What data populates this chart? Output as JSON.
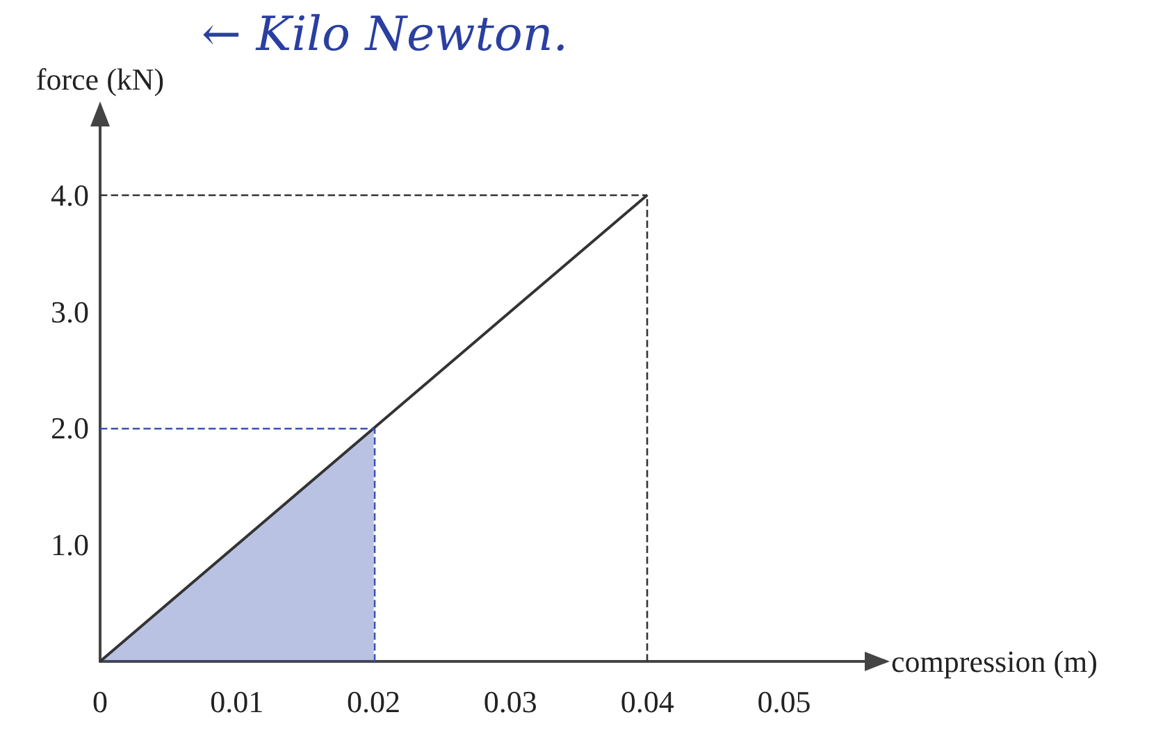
{
  "chart_data": {
    "type": "line",
    "xlabel": "compression (m)",
    "ylabel": "force (kN)",
    "annotations": [
      "← Kilo Newton."
    ],
    "series": [
      {
        "color": "#333333",
        "x": [
          0,
          0.04
        ],
        "values": [
          0,
          4.0
        ]
      },
      {
        "type": "area",
        "color": "#3a4fb0",
        "x": [
          0,
          0.02
        ],
        "values": [
          0,
          2.0
        ]
      }
    ],
    "xlim": [
      0,
      0.056
    ],
    "ylim": [
      0,
      4.6
    ],
    "xticks": [
      0,
      0.01,
      0.02,
      0.03,
      0.04,
      0.05
    ],
    "yticks": [
      {
        "value": 0,
        "label": null
      },
      {
        "value": 1,
        "label": "1.0"
      },
      {
        "value": 2,
        "label": "2.0"
      },
      {
        "value": 3,
        "label": "3.0"
      },
      {
        "value": 4,
        "label": "4.0"
      }
    ],
    "ref_lines": [
      {
        "axis": "y",
        "value": 4.0,
        "color": "#333333",
        "line_style": "dashed"
      },
      {
        "axis": "x",
        "value": 0.04,
        "color": "#333333",
        "line_style": "dashed"
      },
      {
        "axis": "y",
        "value": 2.0,
        "color": "#3a4fb0",
        "line_style": "dashed"
      },
      {
        "axis": "x",
        "value": 0.02,
        "color": "#3a4fb0",
        "line_style": "dashed"
      }
    ],
    "grid": false,
    "marker": "none",
    "line_style": "solid"
  }
}
